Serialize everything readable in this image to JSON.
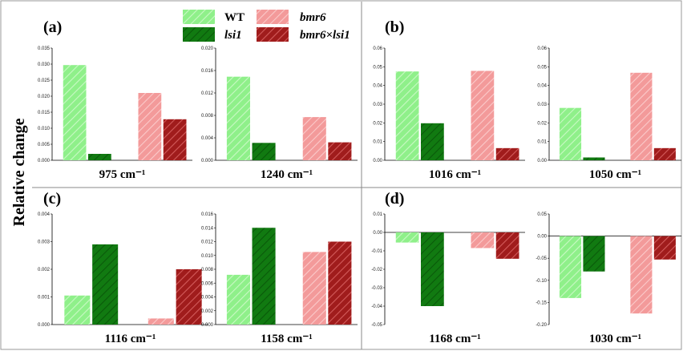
{
  "figure": {
    "ylabel": "Relative change",
    "panel_letters": [
      "(a)",
      "(b)",
      "(c)",
      "(d)"
    ],
    "legend": {
      "items": [
        {
          "label": "WT",
          "italic": false
        },
        {
          "label": "lsi1",
          "italic": true
        },
        {
          "label": "bmr6",
          "italic": true
        },
        {
          "label": "bmr6×lsi1",
          "italic": true
        }
      ]
    },
    "colors": {
      "WT": "#8ff08a",
      "lsi1": "#117a11",
      "bmr6": "#f39a9a",
      "bmr6xlsi1": "#a01c1c",
      "divider": "#888888"
    }
  },
  "chart_data": [
    {
      "type": "bar",
      "panel": "(a)",
      "xlabel": "975 cm⁻¹",
      "categories": [
        "WT",
        "lsi1",
        "bmr6",
        "bmr6×lsi1"
      ],
      "values": [
        0.0297,
        0.002,
        0.021,
        0.0128
      ],
      "ylim": [
        0,
        0.035
      ],
      "yticks": [
        "0.000",
        "0.005",
        "0.010",
        "0.015",
        "0.020",
        "0.025",
        "0.030",
        "0.035"
      ]
    },
    {
      "type": "bar",
      "panel": "(a)",
      "xlabel": "1240 cm⁻¹",
      "categories": [
        "WT",
        "lsi1",
        "bmr6",
        "bmr6×lsi1"
      ],
      "values": [
        0.0149,
        0.0031,
        0.0077,
        0.0032
      ],
      "ylim": [
        0,
        0.02
      ],
      "yticks": [
        "0.000",
        "0.004",
        "0.008",
        "0.012",
        "0.016",
        "0.020"
      ]
    },
    {
      "type": "bar",
      "panel": "(b)",
      "xlabel": "1016 cm⁻¹",
      "categories": [
        "WT",
        "lsi1",
        "bmr6",
        "bmr6×lsi1"
      ],
      "values": [
        0.0475,
        0.0198,
        0.0478,
        0.0065
      ],
      "ylim": [
        0,
        0.06
      ],
      "yticks": [
        "0.00",
        "0.01",
        "0.02",
        "0.03",
        "0.04",
        "0.05",
        "0.06"
      ]
    },
    {
      "type": "bar",
      "panel": "(b)",
      "xlabel": "1050 cm⁻¹",
      "categories": [
        "WT",
        "lsi1",
        "bmr6",
        "bmr6×lsi1"
      ],
      "values": [
        0.028,
        0.0015,
        0.0468,
        0.0065
      ],
      "ylim": [
        0,
        0.06
      ],
      "yticks": [
        "0.00",
        "0.01",
        "0.02",
        "0.03",
        "0.04",
        "0.05",
        "0.06"
      ]
    },
    {
      "type": "bar",
      "panel": "(c)",
      "xlabel": "1116 cm⁻¹",
      "categories": [
        "WT",
        "lsi1",
        "bmr6",
        "bmr6×lsi1"
      ],
      "values": [
        0.00105,
        0.0029,
        0.00022,
        0.002
      ],
      "ylim": [
        0,
        0.004
      ],
      "yticks": [
        "0.000",
        "0.001",
        "0.002",
        "0.003",
        "0.004"
      ]
    },
    {
      "type": "bar",
      "panel": "(c)",
      "xlabel": "1158 cm⁻¹",
      "categories": [
        "WT",
        "lsi1",
        "bmr6",
        "bmr6×lsi1"
      ],
      "values": [
        0.0072,
        0.014,
        0.0105,
        0.012
      ],
      "ylim": [
        0,
        0.016
      ],
      "yticks": [
        "0.000",
        "0.002",
        "0.004",
        "0.006",
        "0.008",
        "0.010",
        "0.012",
        "0.014",
        "0.016"
      ]
    },
    {
      "type": "bar",
      "panel": "(d)",
      "xlabel": "1168 cm⁻¹",
      "categories": [
        "WT",
        "lsi1",
        "bmr6",
        "bmr6×lsi1"
      ],
      "values": [
        -0.0055,
        -0.04,
        -0.0085,
        -0.0143
      ],
      "ylim": [
        -0.05,
        0.01
      ],
      "yticks": [
        "-0.05",
        "-0.04",
        "-0.03",
        "-0.02",
        "-0.01",
        "0.00",
        "0.01"
      ]
    },
    {
      "type": "bar",
      "panel": "(d)",
      "xlabel": "1030 cm⁻¹",
      "categories": [
        "WT",
        "lsi1",
        "bmr6",
        "bmr6×lsi1"
      ],
      "values": [
        -0.14,
        -0.08,
        -0.175,
        -0.053
      ],
      "ylim": [
        -0.2,
        0.05
      ],
      "yticks": [
        "-0.20",
        "-0.15",
        "-0.10",
        "-0.05",
        "0.00",
        "0.05"
      ]
    }
  ]
}
